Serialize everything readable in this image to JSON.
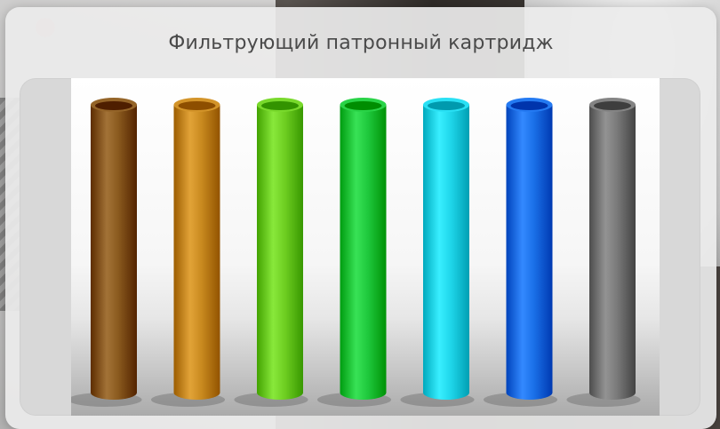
{
  "card": {
    "title": "Фильтрующий патронный картридж"
  },
  "cartridges": [
    {
      "color_name": "brown",
      "color": "#8a5a1e"
    },
    {
      "color_name": "amber",
      "color": "#c98a1f"
    },
    {
      "color_name": "lime",
      "color": "#6fcf22"
    },
    {
      "color_name": "green",
      "color": "#1fc93d"
    },
    {
      "color_name": "cyan",
      "color": "#1fd6ea"
    },
    {
      "color_name": "blue",
      "color": "#1a70e8"
    },
    {
      "color_name": "gray",
      "color": "#7a7a7a"
    }
  ]
}
